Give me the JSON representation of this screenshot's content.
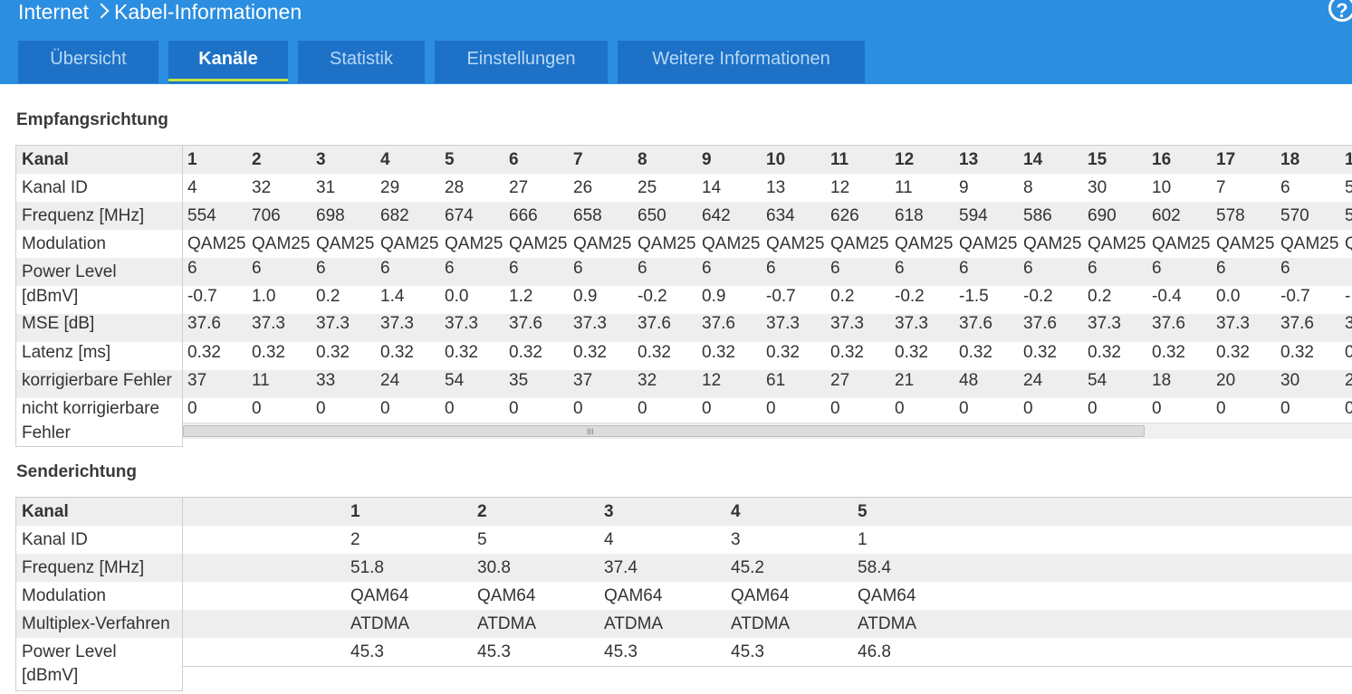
{
  "breadcrumb": {
    "parent": "Internet",
    "current": "Kabel-Informationen"
  },
  "help_label": "?",
  "tabs": [
    {
      "label": "Übersicht",
      "active": false
    },
    {
      "label": "Kanäle",
      "active": true
    },
    {
      "label": "Statistik",
      "active": false
    },
    {
      "label": "Einstellungen",
      "active": false
    },
    {
      "label": "Weitere Informationen",
      "active": false
    }
  ],
  "downstream": {
    "title": "Empfangsrichtung",
    "row_labels": [
      "Kanal",
      "Kanal ID",
      "Frequenz [MHz]",
      "Modulation",
      "Power Level",
      "[dBmV]",
      "MSE [dB]",
      "Latenz [ms]",
      "korrigierbare Fehler",
      "nicht korrigierbare",
      "Fehler"
    ],
    "channels": [
      "1",
      "2",
      "3",
      "4",
      "5",
      "6",
      "7",
      "8",
      "9",
      "10",
      "11",
      "12",
      "13",
      "14",
      "15",
      "16",
      "17",
      "18",
      "1"
    ],
    "kanal_id": [
      "4",
      "32",
      "31",
      "29",
      "28",
      "27",
      "26",
      "25",
      "14",
      "13",
      "12",
      "11",
      "9",
      "8",
      "30",
      "10",
      "7",
      "6",
      "5"
    ],
    "frequenz": [
      "554",
      "706",
      "698",
      "682",
      "674",
      "666",
      "658",
      "650",
      "642",
      "634",
      "626",
      "618",
      "594",
      "586",
      "690",
      "602",
      "578",
      "570",
      "5"
    ],
    "modulation": [
      "QAM25",
      "QAM25",
      "QAM25",
      "QAM25",
      "QAM25",
      "QAM25",
      "QAM25",
      "QAM25",
      "QAM25",
      "QAM25",
      "QAM25",
      "QAM25",
      "QAM25",
      "QAM25",
      "QAM25",
      "QAM25",
      "QAM25",
      "QAM25",
      "Q"
    ],
    "modulation_wrap": [
      "6",
      "6",
      "6",
      "6",
      "6",
      "6",
      "6",
      "6",
      "6",
      "6",
      "6",
      "6",
      "6",
      "6",
      "6",
      "6",
      "6",
      "6",
      ""
    ],
    "power": [
      "-0.7",
      "1.0",
      "0.2",
      "1.4",
      "0.0",
      "1.2",
      "0.9",
      "-0.2",
      "0.9",
      "-0.7",
      "0.2",
      "-0.2",
      "-1.5",
      "-0.2",
      "0.2",
      "-0.4",
      "0.0",
      "-0.7",
      "-"
    ],
    "mse": [
      "37.6",
      "37.3",
      "37.3",
      "37.3",
      "37.3",
      "37.6",
      "37.3",
      "37.6",
      "37.6",
      "37.3",
      "37.3",
      "37.3",
      "37.6",
      "37.6",
      "37.3",
      "37.6",
      "37.3",
      "37.6",
      "3"
    ],
    "latenz": [
      "0.32",
      "0.32",
      "0.32",
      "0.32",
      "0.32",
      "0.32",
      "0.32",
      "0.32",
      "0.32",
      "0.32",
      "0.32",
      "0.32",
      "0.32",
      "0.32",
      "0.32",
      "0.32",
      "0.32",
      "0.32",
      "0"
    ],
    "korr": [
      "37",
      "11",
      "33",
      "24",
      "54",
      "35",
      "37",
      "32",
      "12",
      "61",
      "27",
      "21",
      "48",
      "24",
      "54",
      "18",
      "20",
      "30",
      "2"
    ],
    "nicht_korr": [
      "0",
      "0",
      "0",
      "0",
      "0",
      "0",
      "0",
      "0",
      "0",
      "0",
      "0",
      "0",
      "0",
      "0",
      "0",
      "0",
      "0",
      "0",
      "0"
    ],
    "scroll_grip": "III"
  },
  "upstream": {
    "title": "Senderichtung",
    "row_labels": [
      "Kanal",
      "Kanal ID",
      "Frequenz [MHz]",
      "Modulation",
      "Multiplex-Verfahren",
      "Power Level",
      "[dBmV]"
    ],
    "channels": [
      "1",
      "2",
      "3",
      "4",
      "5"
    ],
    "kanal_id": [
      "2",
      "5",
      "4",
      "3",
      "1"
    ],
    "frequenz": [
      "51.8",
      "30.8",
      "37.4",
      "45.2",
      "58.4"
    ],
    "modulation": [
      "QAM64",
      "QAM64",
      "QAM64",
      "QAM64",
      "QAM64"
    ],
    "multiplex": [
      "ATDMA",
      "ATDMA",
      "ATDMA",
      "ATDMA",
      "ATDMA"
    ],
    "power": [
      "45.3",
      "45.3",
      "45.3",
      "45.3",
      "46.8"
    ]
  },
  "colors": {
    "header_bg": "#2b8ee0",
    "tab_bg": "#1d72c8",
    "active_underline": "#c8e33a",
    "row_alt": "#eeeeee"
  }
}
